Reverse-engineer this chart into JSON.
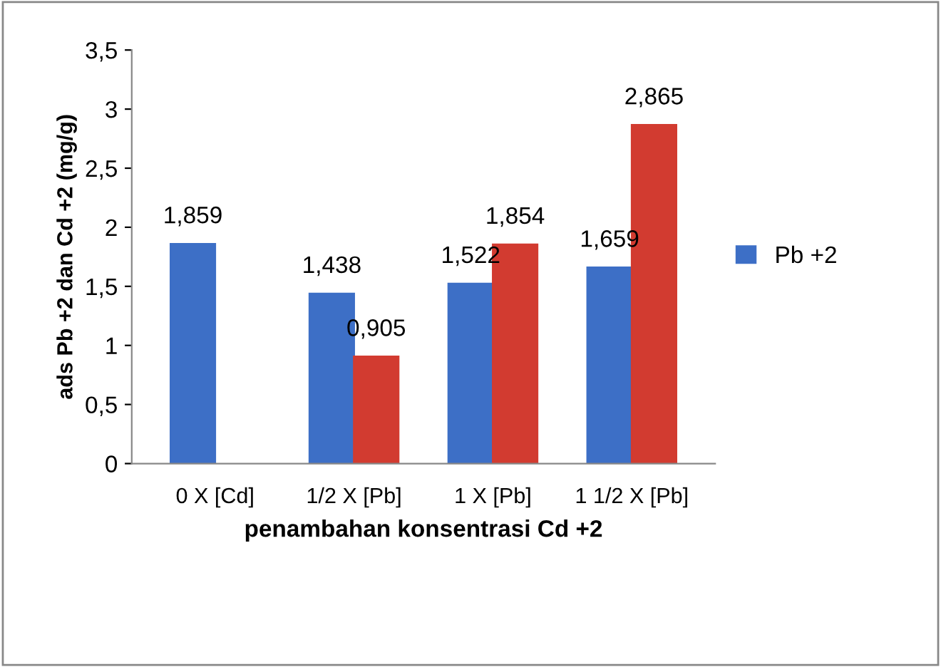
{
  "chart_data": {
    "type": "bar",
    "xlabel": "penambahan konsentrasi Cd +2",
    "ylabel": "ads Pb +2 dan Cd +2 (mg/g)",
    "categories": [
      "0 X [Cd]",
      "1/2 X [Pb]",
      "1 X [Pb]",
      "1 1/2 X [Pb]"
    ],
    "series": [
      {
        "name": "Pb +2",
        "color": "#3d6fc6",
        "values": [
          1.859,
          1.438,
          1.522,
          1.659
        ],
        "value_labels": [
          "1,859",
          "1,438",
          "1,522",
          "1,659"
        ]
      },
      {
        "color": "#d23b30",
        "values": [
          null,
          0.905,
          1.854,
          2.865
        ],
        "value_labels": [
          null,
          "0,905",
          "1,854",
          "2,865"
        ]
      }
    ],
    "ylim": [
      0,
      3.5
    ],
    "yticks": [
      0,
      {
        "value": 0.5,
        "label": "0,5"
      },
      1,
      {
        "value": 1.5,
        "label": "1,5"
      },
      2,
      {
        "value": 2.5,
        "label": "2,5"
      },
      3,
      {
        "value": 3.5,
        "label": "3,5"
      }
    ],
    "legend": "right",
    "grid": false
  }
}
